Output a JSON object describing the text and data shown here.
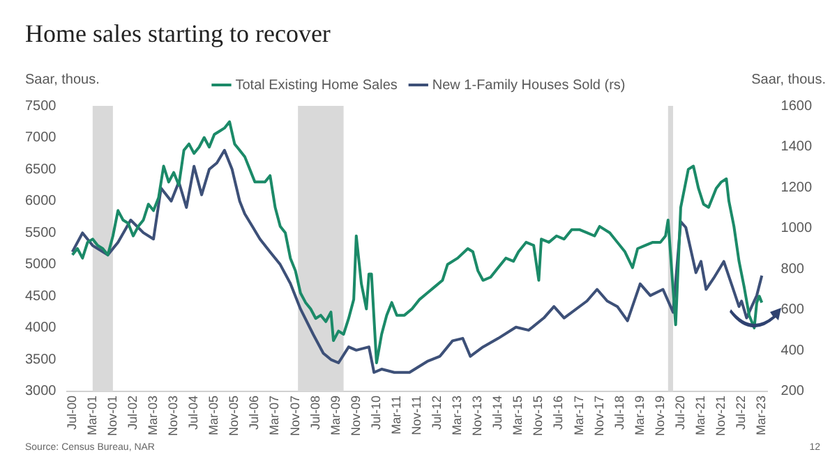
{
  "chart_data": {
    "type": "line",
    "title": "Home sales starting to recover",
    "ylabel": "Saar, thous.",
    "y2label": "Saar, thous.",
    "annotations": [
      "Source: Census Bureau, NAR",
      "12"
    ],
    "legend": "top",
    "grid": false,
    "xlim": [
      "2000-05",
      "2023-05"
    ],
    "xticks": [
      {
        "value": "2000-07",
        "label": "Jul-00"
      },
      {
        "value": "2001-03",
        "label": "Mar-01"
      },
      {
        "value": "2001-11",
        "label": "Nov-01"
      },
      {
        "value": "2002-07",
        "label": "Jul-02"
      },
      {
        "value": "2003-03",
        "label": "Mar-03"
      },
      {
        "value": "2003-11",
        "label": "Nov-03"
      },
      {
        "value": "2004-07",
        "label": "Jul-04"
      },
      {
        "value": "2005-03",
        "label": "Mar-05"
      },
      {
        "value": "2005-11",
        "label": "Nov-05"
      },
      {
        "value": "2006-07",
        "label": "Jul-06"
      },
      {
        "value": "2007-03",
        "label": "Mar-07"
      },
      {
        "value": "2007-11",
        "label": "Nov-07"
      },
      {
        "value": "2008-07",
        "label": "Jul-08"
      },
      {
        "value": "2009-03",
        "label": "Mar-09"
      },
      {
        "value": "2009-11",
        "label": "Nov-09"
      },
      {
        "value": "2010-07",
        "label": "Jul-10"
      },
      {
        "value": "2011-03",
        "label": "Mar-11"
      },
      {
        "value": "2011-11",
        "label": "Nov-11"
      },
      {
        "value": "2012-07",
        "label": "Jul-12"
      },
      {
        "value": "2013-03",
        "label": "Mar-13"
      },
      {
        "value": "2013-11",
        "label": "Nov-13"
      },
      {
        "value": "2014-07",
        "label": "Jul-14"
      },
      {
        "value": "2015-03",
        "label": "Mar-15"
      },
      {
        "value": "2015-11",
        "label": "Nov-15"
      },
      {
        "value": "2016-07",
        "label": "Jul-16"
      },
      {
        "value": "2017-03",
        "label": "Mar-17"
      },
      {
        "value": "2017-11",
        "label": "Nov-17"
      },
      {
        "value": "2018-07",
        "label": "Jul-18"
      },
      {
        "value": "2019-03",
        "label": "Mar-19"
      },
      {
        "value": "2019-11",
        "label": "Nov-19"
      },
      {
        "value": "2020-07",
        "label": "Jul-20"
      },
      {
        "value": "2021-03",
        "label": "Mar-21"
      },
      {
        "value": "2021-11",
        "label": "Nov-21"
      },
      {
        "value": "2022-07",
        "label": "Jul-22"
      },
      {
        "value": "2023-03",
        "label": "Mar-23"
      }
    ],
    "ylim": [
      3000,
      7500
    ],
    "yticks": [
      3000,
      3500,
      4000,
      4500,
      5000,
      5500,
      6000,
      6500,
      7000,
      7500
    ],
    "y2lim": [
      200,
      1600
    ],
    "y2ticks": [
      200,
      400,
      600,
      800,
      1000,
      1200,
      1400,
      1600
    ],
    "bands": [
      {
        "axis": "x",
        "from": "2001-03",
        "to": "2001-11",
        "color": "#d9d9d9"
      },
      {
        "axis": "x",
        "from": "2007-12",
        "to": "2009-06",
        "color": "#d9d9d9"
      },
      {
        "axis": "x",
        "from": "2020-02",
        "to": "2020-04",
        "color": "#d9d9d9"
      }
    ],
    "series": [
      {
        "name": "Total Existing Home Sales",
        "color": "#1b8a68",
        "x": [
          "2000-07",
          "2000-09",
          "2000-11",
          "2001-01",
          "2001-03",
          "2001-05",
          "2001-07",
          "2001-09",
          "2001-11",
          "2002-01",
          "2002-03",
          "2002-05",
          "2002-07",
          "2002-09",
          "2002-11",
          "2003-01",
          "2003-03",
          "2003-05",
          "2003-07",
          "2003-09",
          "2003-11",
          "2004-01",
          "2004-03",
          "2004-05",
          "2004-07",
          "2004-09",
          "2004-11",
          "2005-01",
          "2005-03",
          "2005-05",
          "2005-07",
          "2005-09",
          "2005-11",
          "2006-01",
          "2006-03",
          "2006-05",
          "2006-07",
          "2006-09",
          "2006-11",
          "2007-01",
          "2007-03",
          "2007-05",
          "2007-07",
          "2007-09",
          "2007-11",
          "2008-01",
          "2008-03",
          "2008-05",
          "2008-07",
          "2008-09",
          "2008-11",
          "2009-01",
          "2009-02",
          "2009-04",
          "2009-06",
          "2009-08",
          "2009-10",
          "2009-11",
          "2010-01",
          "2010-03",
          "2010-04",
          "2010-05",
          "2010-07",
          "2010-09",
          "2010-11",
          "2011-01",
          "2011-03",
          "2011-06",
          "2011-09",
          "2011-12",
          "2012-03",
          "2012-06",
          "2012-09",
          "2012-11",
          "2013-03",
          "2013-07",
          "2013-09",
          "2013-11",
          "2014-01",
          "2014-04",
          "2014-07",
          "2014-10",
          "2015-01",
          "2015-03",
          "2015-06",
          "2015-09",
          "2015-11",
          "2015-12",
          "2016-03",
          "2016-06",
          "2016-09",
          "2016-12",
          "2017-03",
          "2017-06",
          "2017-09",
          "2017-11",
          "2018-03",
          "2018-06",
          "2018-09",
          "2018-12",
          "2019-02",
          "2019-05",
          "2019-08",
          "2019-11",
          "2020-01",
          "2020-02",
          "2020-05",
          "2020-07",
          "2020-10",
          "2020-12",
          "2021-02",
          "2021-04",
          "2021-06",
          "2021-09",
          "2021-11",
          "2022-01",
          "2022-02",
          "2022-04",
          "2022-06",
          "2022-08",
          "2022-10",
          "2022-12",
          "2023-01",
          "2023-02",
          "2023-03"
        ],
        "values": [
          5150,
          5250,
          5100,
          5350,
          5400,
          5300,
          5250,
          5150,
          5450,
          5850,
          5700,
          5650,
          5450,
          5600,
          5700,
          5950,
          5850,
          6050,
          6550,
          6300,
          6450,
          6250,
          6800,
          6900,
          6750,
          6850,
          7000,
          6850,
          7050,
          7100,
          7150,
          7250,
          6900,
          6800,
          6700,
          6500,
          6300,
          6300,
          6300,
          6400,
          5900,
          5600,
          5500,
          5100,
          4900,
          4550,
          4400,
          4300,
          4150,
          4200,
          4100,
          4250,
          3800,
          3950,
          3900,
          4150,
          4450,
          5450,
          4700,
          4300,
          4850,
          4850,
          3450,
          3900,
          4200,
          4400,
          4200,
          4200,
          4300,
          4450,
          4550,
          4650,
          4750,
          5000,
          5100,
          5250,
          5200,
          4900,
          4750,
          4800,
          4950,
          5100,
          5050,
          5200,
          5350,
          5300,
          4750,
          5400,
          5350,
          5450,
          5400,
          5550,
          5550,
          5500,
          5450,
          5600,
          5500,
          5350,
          5200,
          4950,
          5250,
          5300,
          5350,
          5350,
          5450,
          5700,
          4050,
          5900,
          6500,
          6550,
          6200,
          5950,
          5900,
          6200,
          6300,
          6350,
          6000,
          5600,
          5050,
          4650,
          4200,
          4000,
          4400,
          4500,
          4400
        ]
      },
      {
        "name": "New 1-Family Houses Sold (rs)",
        "color": "#3d5078",
        "axis": "y2",
        "x": [
          "2000-07",
          "2000-11",
          "2001-03",
          "2001-09",
          "2002-01",
          "2002-06",
          "2002-11",
          "2003-03",
          "2003-06",
          "2003-10",
          "2004-01",
          "2004-04",
          "2004-07",
          "2004-10",
          "2005-01",
          "2005-04",
          "2005-07",
          "2005-10",
          "2006-01",
          "2006-03",
          "2006-06",
          "2006-09",
          "2007-01",
          "2007-05",
          "2007-09",
          "2008-01",
          "2008-06",
          "2008-10",
          "2009-01",
          "2009-04",
          "2009-08",
          "2009-11",
          "2010-04",
          "2010-06",
          "2010-09",
          "2011-02",
          "2011-08",
          "2012-03",
          "2012-08",
          "2013-01",
          "2013-05",
          "2013-08",
          "2014-01",
          "2014-07",
          "2015-02",
          "2015-07",
          "2016-01",
          "2016-05",
          "2016-09",
          "2017-06",
          "2017-10",
          "2018-02",
          "2018-06",
          "2018-10",
          "2019-03",
          "2019-07",
          "2019-12",
          "2020-04",
          "2020-07",
          "2020-09",
          "2020-11",
          "2021-01",
          "2021-03",
          "2021-05",
          "2021-08",
          "2021-12",
          "2022-03",
          "2022-06",
          "2022-07",
          "2022-09",
          "2022-11",
          "2023-01",
          "2023-03"
        ],
        "values": [
          884,
          977,
          915,
          869,
          931,
          1040,
          978,
          947,
          1196,
          1133,
          1227,
          1102,
          1304,
          1164,
          1289,
          1320,
          1382,
          1289,
          1133,
          1071,
          1009,
          947,
          884,
          822,
          729,
          604,
          480,
          387,
          356,
          340,
          418,
          402,
          418,
          293,
          309,
          293,
          293,
          347,
          372,
          448,
          460,
          372,
          418,
          460,
          515,
          500,
          560,
          616,
          560,
          643,
          700,
          643,
          616,
          546,
          727,
          670,
          700,
          588,
          1032,
          1004,
          893,
          782,
          837,
          700,
          755,
          837,
          727,
          616,
          643,
          560,
          616,
          670,
          768
        ]
      }
    ]
  }
}
